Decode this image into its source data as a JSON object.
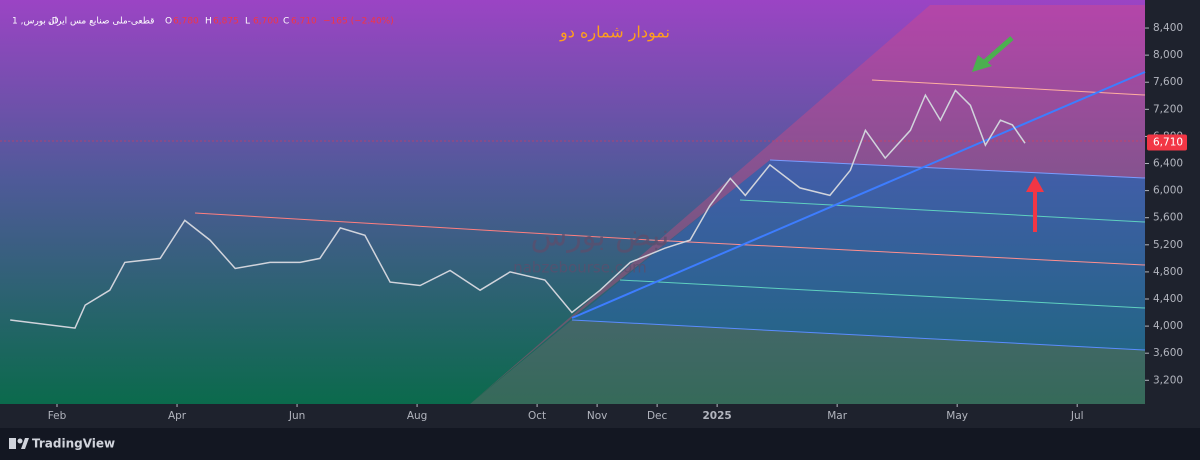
{
  "header": {
    "symbol": "قطعی-ملی صنایع مس ایران",
    "interval": "1 ,بورس ,D",
    "open_key": "O",
    "open": "6,780",
    "high_key": "H",
    "high": "6,875",
    "low_key": "L",
    "low": "6,700",
    "close_key": "C",
    "close": "6,710",
    "change": "−165 (−2.40%)"
  },
  "watermark": {
    "brand": "نبض بورس",
    "site": "nabzebourse.com"
  },
  "footer": {
    "brand": "TradingView"
  },
  "chart_data": {
    "type": "line",
    "title": "نمودار شماره دو",
    "color": "#d1d4dc",
    "x": [
      0.22,
      1.3,
      1.47,
      1.88,
      2.13,
      2.72,
      3.13,
      3.55,
      3.97,
      4.55,
      5.05,
      5.38,
      5.72,
      6.13,
      6.55,
      7.05,
      7.55,
      8.05,
      8.55,
      9.13,
      9.58,
      10.05,
      10.55,
      11.13,
      11.55,
      11.88,
      12.22,
      12.47,
      12.88,
      13.38,
      13.88,
      14.22,
      14.47,
      14.8,
      15.22,
      15.47,
      15.72,
      15.97,
      16.22,
      16.47,
      16.72,
      16.92,
      17.13
    ],
    "values": [
      4090,
      3970,
      4310,
      4530,
      4940,
      5000,
      5560,
      5270,
      4850,
      4940,
      4940,
      5000,
      5450,
      5340,
      4650,
      4600,
      4820,
      4530,
      4800,
      4680,
      4200,
      4530,
      4940,
      5150,
      5270,
      5780,
      6180,
      5930,
      6380,
      6040,
      5930,
      6300,
      6890,
      6480,
      6890,
      7410,
      7040,
      7480,
      7260,
      6670,
      7040,
      6970,
      6700
    ],
    "xlim": [
      0.05,
      19.13
    ],
    "xticks": [
      {
        "value": 1,
        "label": "Feb"
      },
      {
        "value": 3,
        "label": "Apr"
      },
      {
        "value": 5,
        "label": "Jun"
      },
      {
        "value": 7,
        "label": "Aug"
      },
      {
        "value": 9,
        "label": "Oct"
      },
      {
        "value": 10,
        "label": "Nov"
      },
      {
        "value": 11,
        "label": "Dec"
      },
      {
        "value": 12,
        "label": "2025"
      },
      {
        "value": 14,
        "label": "Mar"
      },
      {
        "value": 16,
        "label": "May"
      },
      {
        "value": 18,
        "label": "Jul"
      }
    ],
    "ylim": [
      2850,
      8740
    ],
    "yticks": [
      {
        "value": 3200,
        "label": "3,200"
      },
      {
        "value": 3600,
        "label": "3,600"
      },
      {
        "value": 4000,
        "label": "4,000"
      },
      {
        "value": 4400,
        "label": "4,400"
      },
      {
        "value": 4800,
        "label": "4,800"
      },
      {
        "value": 5200,
        "label": "5,200"
      },
      {
        "value": 5600,
        "label": "5,600"
      },
      {
        "value": 6000,
        "label": "6,000"
      },
      {
        "value": 6400,
        "label": "6,400"
      },
      {
        "value": 6800,
        "label": "6,800"
      },
      {
        "value": 7200,
        "label": "7,200"
      },
      {
        "value": 7600,
        "label": "7,600"
      },
      {
        "value": 8000,
        "label": "8,000"
      },
      {
        "value": 8400,
        "label": "8,400"
      }
    ],
    "last_price": {
      "value": 6710,
      "label": "6,710",
      "color": "#f23645"
    }
  }
}
